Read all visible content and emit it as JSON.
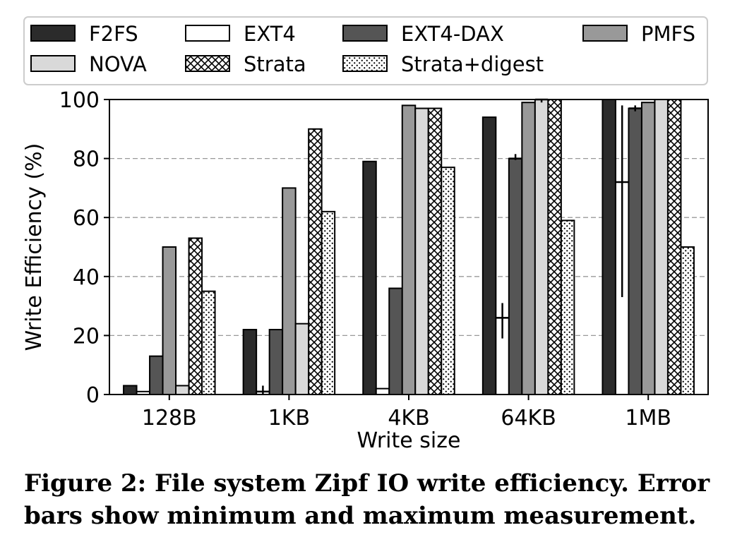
{
  "caption": "Figure 2: File system Zipf IO write efficiency. Error bars show minimum and maximum measurement.",
  "chart_data": {
    "type": "bar",
    "xlabel": "Write size",
    "ylabel": "Write Efficiency (%)",
    "ylim": [
      0,
      100
    ],
    "yticks": [
      0,
      20,
      40,
      60,
      80,
      100
    ],
    "grid": "horizontal dashed",
    "legend_position": "top, outside plot",
    "categories": [
      "128B",
      "1KB",
      "4KB",
      "64KB",
      "1MB"
    ],
    "series": [
      {
        "name": "F2FS",
        "style": "solid",
        "color": "#2b2b2b",
        "values": [
          3,
          22,
          79,
          94,
          100
        ],
        "err": [
          null,
          null,
          null,
          null,
          null
        ]
      },
      {
        "name": "EXT4",
        "style": "solid",
        "color": "#ffffff",
        "values": [
          1,
          1,
          2,
          26,
          72
        ],
        "err": [
          null,
          [
            0,
            3
          ],
          null,
          [
            19,
            31
          ],
          [
            33,
            98
          ]
        ]
      },
      {
        "name": "EXT4-DAX",
        "style": "solid",
        "color": "#555555",
        "values": [
          13,
          22,
          36,
          80,
          97
        ],
        "err": [
          null,
          null,
          null,
          [
            79.5,
            81.5
          ],
          [
            96,
            98
          ]
        ]
      },
      {
        "name": "PMFS",
        "style": "solid",
        "color": "#999999",
        "values": [
          50,
          70,
          98,
          99,
          99
        ],
        "err": [
          null,
          null,
          null,
          null,
          null
        ]
      },
      {
        "name": "NOVA",
        "style": "solid",
        "color": "#d9d9d9",
        "values": [
          3,
          24,
          97,
          100,
          100
        ],
        "err": [
          null,
          null,
          null,
          [
            99,
            100
          ],
          null
        ]
      },
      {
        "name": "Strata",
        "style": "crosshatch",
        "color": "#ffffff",
        "values": [
          53,
          90,
          97,
          100,
          100
        ],
        "err": [
          null,
          null,
          null,
          null,
          null
        ]
      },
      {
        "name": "Strata+digest",
        "style": "dots",
        "color": "#ffffff",
        "values": [
          35,
          62,
          77,
          59,
          50
        ],
        "err": [
          null,
          null,
          null,
          null,
          null
        ]
      }
    ]
  }
}
